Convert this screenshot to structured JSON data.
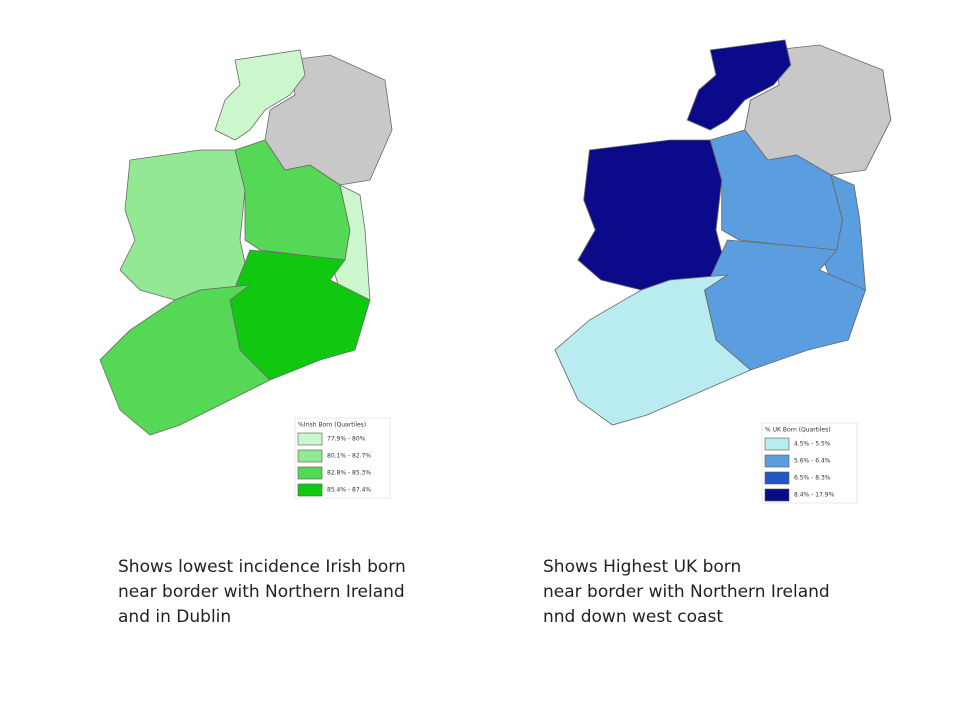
{
  "maps": [
    {
      "legend": {
        "title": "%Irish Born (Quartiles)",
        "items": [
          {
            "label": "77.9% - 80%",
            "color": "#ccf7cc"
          },
          {
            "label": "80.1% - 82.7%",
            "color": "#93e893"
          },
          {
            "label": "82.8% - 85.3%",
            "color": "#55d855"
          },
          {
            "label": "85.4% - 87.4%",
            "color": "#11c811"
          }
        ]
      },
      "caption": [
        "Shows lowest incidence Irish born",
        "near border with Northern Ireland",
        "and in Dublin"
      ]
    },
    {
      "legend": {
        "title": "% UK Born (Quartiles)",
        "items": [
          {
            "label": "4.5% - 5.5%",
            "color": "#b8ecf0"
          },
          {
            "label": "5.6% - 6.4%",
            "color": "#5a9ee0"
          },
          {
            "label": "6.5% - 8.3%",
            "color": "#2456c4"
          },
          {
            "label": "8.4% - 17.9%",
            "color": "#0a0a8a"
          }
        ]
      },
      "caption": [
        "Shows Highest UK born",
        "near border with Northern Ireland",
        "nnd down west coast"
      ]
    }
  ]
}
